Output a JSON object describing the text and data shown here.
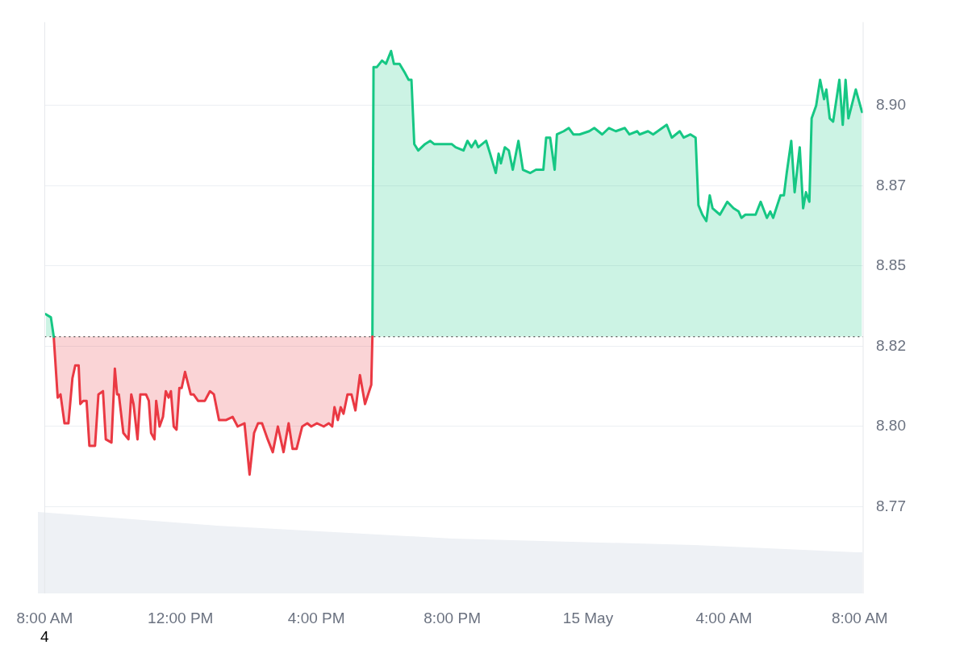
{
  "chart_data": {
    "type": "area",
    "xlim": [
      "--05-14T08:00",
      "--05-15T08:06"
    ],
    "xticks": [
      {
        "value": "--05-14T08:00",
        "label": "8:00 AM"
      },
      {
        "value": "--05-14T12:00",
        "label": "12:00 PM"
      },
      {
        "value": "--05-14T16:00",
        "label": "4:00 PM"
      },
      {
        "value": "--05-14T20:00",
        "label": "8:00 PM"
      },
      {
        "value": "--05-15T00:00",
        "label": "15 May"
      },
      {
        "value": "--05-15T04:00",
        "label": "4:00 AM"
      },
      {
        "value": "--05-15T08:00",
        "label": "8:00 AM"
      }
    ],
    "ylim": [
      8.748,
      8.926
    ],
    "yticks": [
      {
        "value": 8.775,
        "label": "8.77"
      },
      {
        "value": 8.8,
        "label": "8.80"
      },
      {
        "value": 8.825,
        "label": "8.82"
      },
      {
        "value": 8.85,
        "label": "8.85"
      },
      {
        "value": 8.875,
        "label": "8.87"
      },
      {
        "value": 8.9,
        "label": "8.90"
      }
    ],
    "grid": "y",
    "legend": false,
    "marker": "none",
    "line_style": "solid",
    "ref_lines": [
      {
        "axis": "y",
        "value": 8.828,
        "color": "#555555",
        "line_style": "dotted"
      }
    ],
    "annotations": [
      "4"
    ],
    "series": [
      {
        "color": "#16c784",
        "x": [
          "--05-14T08:02",
          "--05-14T08:11",
          "--05-14T08:16"
        ],
        "values": [
          8.835,
          8.834,
          8.828
        ]
      },
      {
        "color": "#ea3943",
        "x": [
          "--05-14T08:16",
          "--05-14T08:23",
          "--05-14T08:28",
          "--05-14T08:35",
          "--05-14T08:42",
          "--05-14T08:49",
          "--05-14T08:54",
          "--05-14T09:00",
          "--05-14T09:03",
          "--05-14T09:08",
          "--05-14T09:14",
          "--05-14T09:19",
          "--05-14T09:29",
          "--05-14T09:35",
          "--05-14T09:43",
          "--05-14T09:48",
          "--05-14T09:58",
          "--05-14T10:04",
          "--05-14T10:08",
          "--05-14T10:11",
          "--05-14T10:19",
          "--05-14T10:28",
          "--05-14T10:33",
          "--05-14T10:37",
          "--05-14T10:44",
          "--05-14T10:49",
          "--05-14T10:59",
          "--05-14T11:04",
          "--05-14T11:08",
          "--05-14T11:14",
          "--05-14T11:17",
          "--05-14T11:23",
          "--05-14T11:29",
          "--05-14T11:34",
          "--05-14T11:39",
          "--05-14T11:43",
          "--05-14T11:48",
          "--05-14T11:53",
          "--05-14T11:58",
          "--05-14T12:02",
          "--05-14T12:08",
          "--05-14T12:18",
          "--05-14T12:23",
          "--05-14T12:31",
          "--05-14T12:43",
          "--05-14T12:52",
          "--05-14T12:59",
          "--05-14T13:08",
          "--05-14T13:20",
          "--05-14T13:32",
          "--05-14T13:41",
          "--05-14T13:53",
          "--05-14T14:02",
          "--05-14T14:10",
          "--05-14T14:17",
          "--05-14T14:24",
          "--05-14T14:34",
          "--05-14T14:43",
          "--05-14T14:52",
          "--05-14T15:02",
          "--05-14T15:11",
          "--05-14T15:18",
          "--05-14T15:25",
          "--05-14T15:35",
          "--05-14T15:44",
          "--05-14T15:51",
          "--05-14T16:01",
          "--05-14T16:13",
          "--05-14T16:22",
          "--05-14T16:28",
          "--05-14T16:32",
          "--05-14T16:38",
          "--05-14T16:43",
          "--05-14T16:48",
          "--05-14T16:55",
          "--05-14T17:02",
          "--05-14T17:09",
          "--05-14T17:17",
          "--05-14T17:26",
          "--05-14T17:37",
          "--05-14T17:39"
        ],
        "values": [
          8.828,
          8.809,
          8.81,
          8.801,
          8.801,
          8.815,
          8.819,
          8.819,
          8.807,
          8.808,
          8.808,
          8.794,
          8.794,
          8.81,
          8.811,
          8.796,
          8.795,
          8.818,
          8.81,
          8.81,
          8.798,
          8.796,
          8.81,
          8.807,
          8.796,
          8.81,
          8.81,
          8.808,
          8.798,
          8.796,
          8.808,
          8.8,
          8.803,
          8.811,
          8.809,
          8.811,
          8.8,
          8.799,
          8.812,
          8.812,
          8.817,
          8.81,
          8.81,
          8.808,
          8.808,
          8.811,
          8.81,
          8.802,
          8.802,
          8.803,
          8.8,
          8.801,
          8.785,
          8.798,
          8.801,
          8.801,
          8.796,
          8.792,
          8.8,
          8.792,
          8.801,
          8.793,
          8.793,
          8.8,
          8.801,
          8.8,
          8.801,
          8.8,
          8.801,
          8.8,
          8.806,
          8.802,
          8.806,
          8.804,
          8.81,
          8.81,
          8.805,
          8.816,
          8.807,
          8.813,
          8.828
        ]
      },
      {
        "color": "#16c784",
        "x": [
          "--05-14T17:39",
          "--05-14T17:41",
          "--05-14T17:47",
          "--05-14T17:56",
          "--05-14T18:03",
          "--05-14T18:12",
          "--05-14T18:17",
          "--05-14T18:27",
          "--05-14T18:37",
          "--05-14T18:43",
          "--05-14T18:48",
          "--05-14T18:53",
          "--05-14T19:00",
          "--05-14T19:12",
          "--05-14T19:21",
          "--05-14T19:28",
          "--05-14T19:47",
          "--05-14T19:59",
          "--05-14T20:06",
          "--05-14T20:20",
          "--05-14T20:27",
          "--05-14T20:34",
          "--05-14T20:41",
          "--05-14T20:46",
          "--05-14T21:00",
          "--05-14T21:07",
          "--05-14T21:17",
          "--05-14T21:22",
          "--05-14T21:26",
          "--05-14T21:33",
          "--05-14T21:40",
          "--05-14T21:47",
          "--05-14T21:57",
          "--05-14T22:05",
          "--05-14T22:18",
          "--05-14T22:28",
          "--05-14T22:41",
          "--05-14T22:46",
          "--05-14T22:53",
          "--05-14T23:01",
          "--05-14T23:05",
          "--05-14T23:17",
          "--05-14T23:26",
          "--05-14T23:34",
          "--05-14T23:45",
          "--05-15T00:02",
          "--05-15T00:11",
          "--05-15T00:25",
          "--05-15T00:37",
          "--05-15T00:49",
          "--05-15T01:05",
          "--05-15T01:13",
          "--05-15T01:27",
          "--05-15T01:31",
          "--05-15T01:46",
          "--05-15T01:55",
          "--05-15T02:19",
          "--05-15T02:28",
          "--05-15T02:42",
          "--05-15T02:49",
          "--05-15T03:01",
          "--05-15T03:10",
          "--05-15T03:15",
          "--05-15T03:22",
          "--05-15T03:29",
          "--05-15T03:35",
          "--05-15T03:40",
          "--05-15T03:53",
          "--05-15T04:06",
          "--05-15T04:17",
          "--05-15T04:26",
          "--05-15T04:31",
          "--05-15T04:38",
          "--05-15T04:56",
          "--05-15T05:05",
          "--05-15T05:16",
          "--05-15T05:22",
          "--05-15T05:27",
          "--05-15T05:40",
          "--05-15T05:46",
          "--05-15T05:51",
          "--05-15T05:59",
          "--05-15T06:05",
          "--05-15T06:14",
          "--05-15T06:20",
          "--05-15T06:25",
          "--05-15T06:31",
          "--05-15T06:35",
          "--05-15T06:43",
          "--05-15T06:50",
          "--05-15T06:57",
          "--05-15T07:01",
          "--05-15T07:07",
          "--05-15T07:13",
          "--05-15T07:24",
          "--05-15T07:30",
          "--05-15T07:35",
          "--05-15T07:40",
          "--05-15T07:53",
          "--05-15T08:04"
        ],
        "values": [
          8.828,
          8.912,
          8.912,
          8.914,
          8.913,
          8.917,
          8.913,
          8.913,
          8.91,
          8.908,
          8.908,
          8.888,
          8.886,
          8.888,
          8.889,
          8.888,
          8.888,
          8.888,
          8.887,
          8.886,
          8.889,
          8.887,
          8.889,
          8.887,
          8.889,
          8.885,
          8.879,
          8.885,
          8.882,
          8.887,
          8.886,
          8.88,
          8.889,
          8.88,
          8.879,
          8.88,
          8.88,
          8.89,
          8.89,
          8.88,
          8.891,
          8.892,
          8.893,
          8.891,
          8.891,
          8.892,
          8.893,
          8.891,
          8.893,
          8.892,
          8.893,
          8.891,
          8.892,
          8.891,
          8.892,
          8.891,
          8.894,
          8.89,
          8.892,
          8.89,
          8.891,
          8.89,
          8.869,
          8.866,
          8.864,
          8.872,
          8.868,
          8.866,
          8.87,
          8.868,
          8.867,
          8.865,
          8.866,
          8.866,
          8.87,
          8.865,
          8.867,
          8.865,
          8.872,
          8.872,
          8.879,
          8.889,
          8.873,
          8.887,
          8.868,
          8.873,
          8.87,
          8.896,
          8.9,
          8.908,
          8.902,
          8.905,
          8.896,
          8.895,
          8.908,
          8.894,
          8.908,
          8.896,
          8.905,
          8.898
        ]
      }
    ]
  }
}
